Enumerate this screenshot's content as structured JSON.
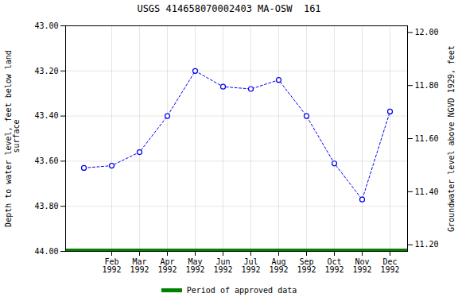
{
  "chart_data": {
    "type": "line",
    "title": "USGS 414658070002403 MA-OSW  161",
    "categories": [
      null,
      "Feb\n1992",
      "Mar\n1992",
      "Apr\n1992",
      "May\n1992",
      "Jun\n1992",
      "Jul\n1992",
      "Aug\n1992",
      "Sep\n1992",
      "Oct\n1992",
      "Nov\n1992",
      "Dec\n1992"
    ],
    "series": [
      {
        "color": "#0000ee",
        "marker": "circle",
        "line_style": "dashed",
        "values": [
          43.63,
          43.62,
          43.56,
          43.4,
          43.2,
          43.27,
          43.28,
          43.24,
          43.4,
          43.61,
          43.77,
          43.38
        ]
      },
      {
        "name": "Period of approved data",
        "type": "hline",
        "color": "#008000",
        "values": [
          44.0,
          44.0,
          44.0,
          44.0,
          44.0,
          44.0,
          44.0,
          44.0,
          44.0,
          44.0,
          44.0,
          44.0
        ]
      }
    ],
    "y_label": "Depth to water level, feet below land\n surface",
    "y2_label": "Groundwater level above NGVD 1929, feet",
    "ylim": [
      44.0,
      43.0
    ],
    "yticks": [
      {
        "value": 44.0,
        "label": "44.00"
      },
      {
        "value": 43.8,
        "label": "43.80"
      },
      {
        "value": 43.6,
        "label": "43.60"
      },
      {
        "value": 43.4,
        "label": "43.40"
      },
      {
        "value": 43.2,
        "label": "43.20"
      },
      {
        "value": 43.0,
        "label": "43.00"
      }
    ],
    "y2lim": [
      11.175,
      12.025
    ],
    "y2ticks": [
      {
        "value": 11.2,
        "label": "11.20"
      },
      {
        "value": 11.4,
        "label": "11.40"
      },
      {
        "value": 11.6,
        "label": "11.60"
      },
      {
        "value": 11.8,
        "label": "11.80"
      },
      {
        "value": 12.0,
        "label": "12.00"
      }
    ],
    "grid": true,
    "legend": "bottom"
  }
}
